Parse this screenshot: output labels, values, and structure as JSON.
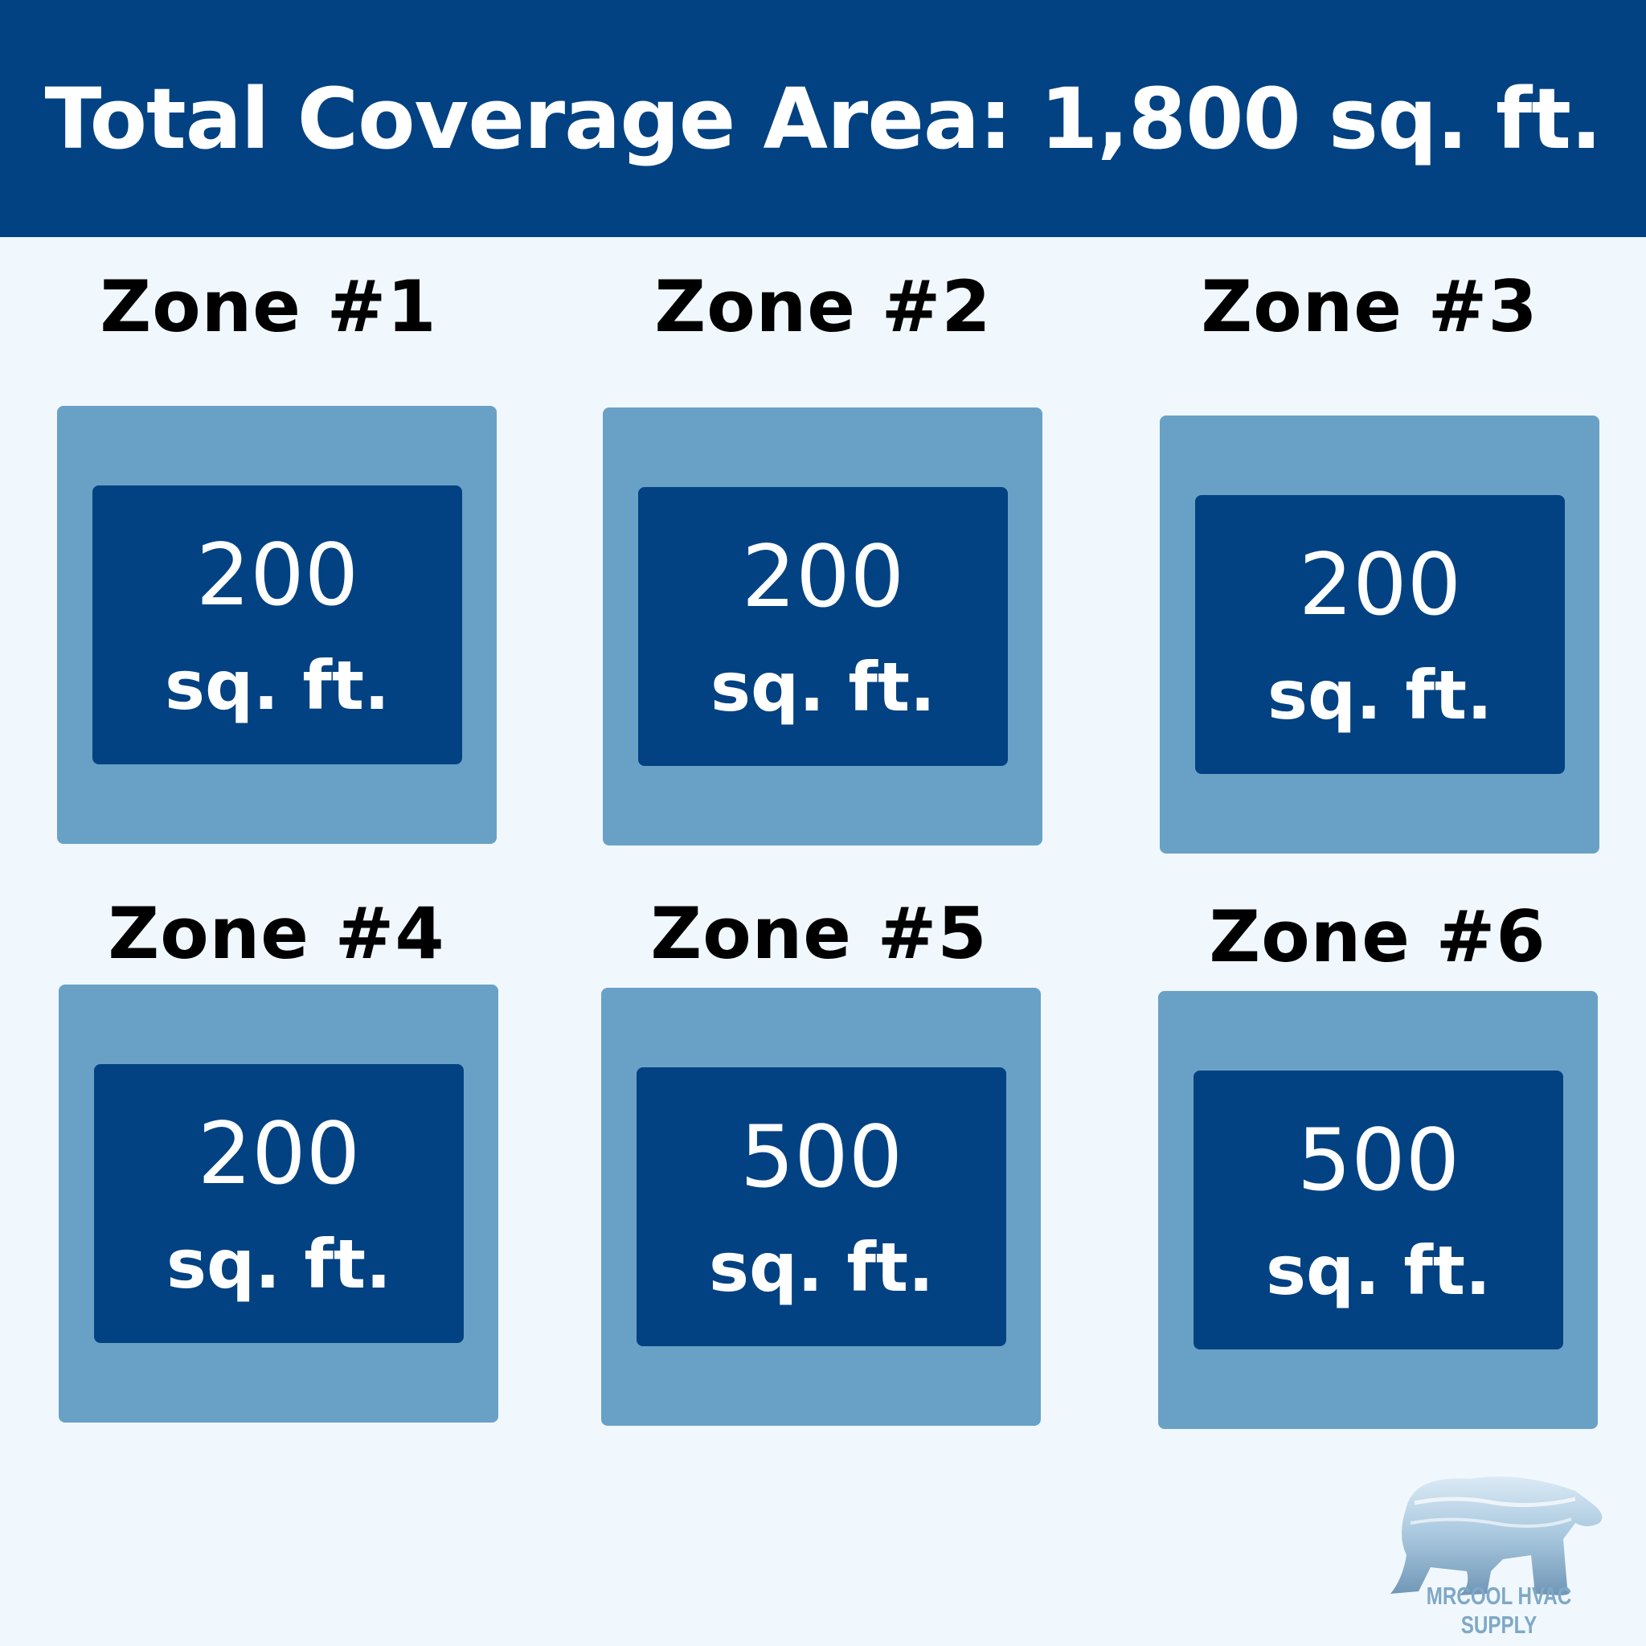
{
  "header": {
    "title": "Total Coverage Area: 1,800 sq. ft."
  },
  "zones": [
    {
      "label": "Zone #1",
      "value": "200",
      "unit": "sq. ft."
    },
    {
      "label": "Zone #2",
      "value": "200",
      "unit": "sq. ft."
    },
    {
      "label": "Zone #3",
      "value": "200",
      "unit": "sq. ft."
    },
    {
      "label": "Zone #4",
      "value": "200",
      "unit": "sq. ft."
    },
    {
      "label": "Zone #5",
      "value": "500",
      "unit": "sq. ft."
    },
    {
      "label": "Zone #6",
      "value": "500",
      "unit": "sq. ft."
    }
  ],
  "logo": {
    "text": "MRCOOL HVAC SUPPLY",
    "icon": "polar-bear-icon"
  },
  "colors": {
    "header": "#024282",
    "outer_box": "#69a1c6",
    "inner_box": "#024282",
    "background": "#f0f8fd"
  }
}
